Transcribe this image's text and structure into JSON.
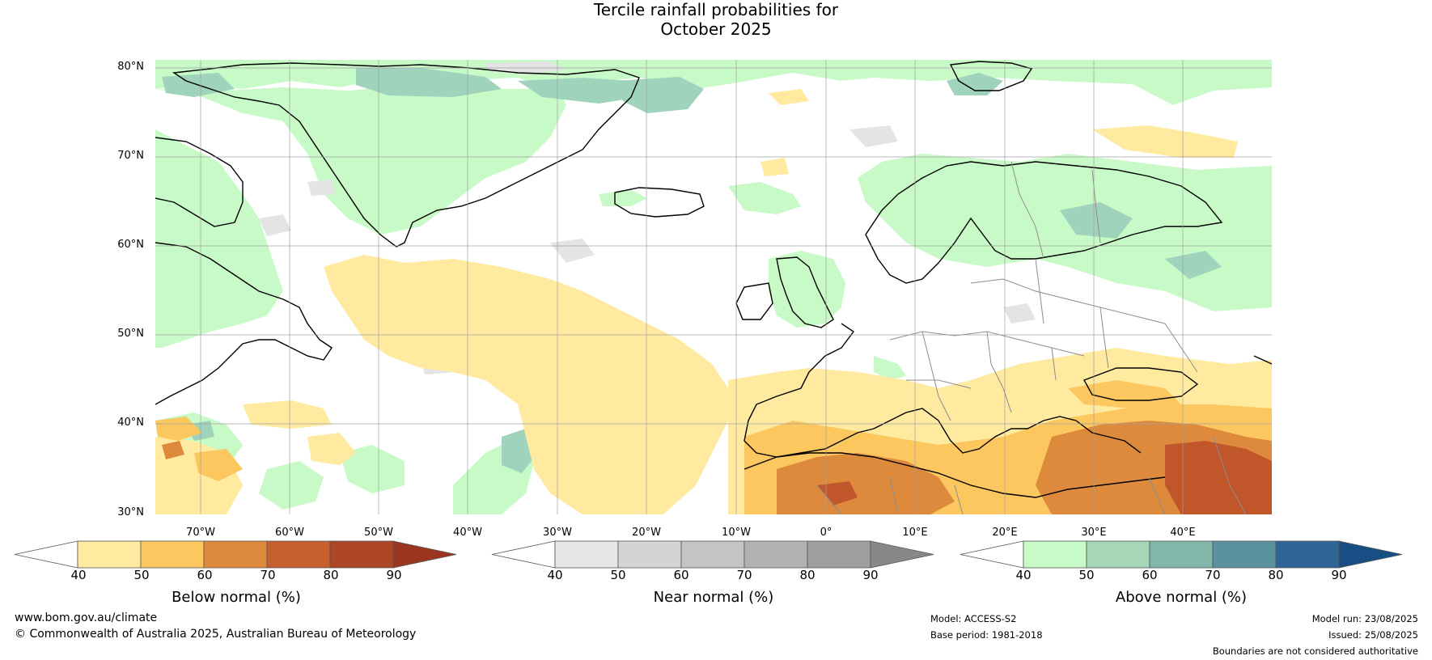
{
  "title_line1": "Tercile rainfall probabilities for",
  "title_line2": "October 2025",
  "map": {
    "lat_labels": [
      "80°N",
      "70°N",
      "60°N",
      "50°N",
      "40°N",
      "30°N"
    ],
    "lon_labels": [
      "70°W",
      "60°W",
      "50°W",
      "40°W",
      "30°W",
      "20°W",
      "10°W",
      "0°",
      "10°E",
      "20°E",
      "30°E",
      "40°E"
    ],
    "colors": {
      "above": "#c8fac8",
      "above_strong": "#9fd3bb",
      "near": "#e4e4e4",
      "below": "#ffeaa0",
      "below_mid": "#fcc75e",
      "below_strong": "#de8a3c",
      "below_max": "#c2562b",
      "coast": "#000000",
      "border": "#8c8c8c",
      "grid": "#a0a0a0"
    }
  },
  "colorbars": [
    {
      "name": "below",
      "label": "Below normal (%)",
      "ticks": [
        "40",
        "50",
        "60",
        "70",
        "80",
        "90"
      ],
      "colors": [
        "#ffffff",
        "#ffeaa0",
        "#fcc75e",
        "#de8a3c",
        "#c85f2f",
        "#ad4527",
        "#9b3520"
      ]
    },
    {
      "name": "near",
      "label": "Near normal (%)",
      "ticks": [
        "40",
        "50",
        "60",
        "70",
        "80",
        "90"
      ],
      "colors": [
        "#ffffff",
        "#e6e6e6",
        "#d4d4d4",
        "#c4c4c4",
        "#b2b2b2",
        "#9e9e9e",
        "#888888"
      ]
    },
    {
      "name": "above",
      "label": "Above normal (%)",
      "ticks": [
        "40",
        "50",
        "60",
        "70",
        "80",
        "90"
      ],
      "colors": [
        "#ffffff",
        "#c8fac8",
        "#a6d6b8",
        "#82b7ab",
        "#5c91a0",
        "#2f6697",
        "#174f85"
      ]
    }
  ],
  "footer": {
    "site": "www.bom.gov.au/climate",
    "copyright": "© Commonwealth of Australia 2025, Australian Bureau of Meteorology",
    "model": "Model: ACCESS-S2",
    "base_period": "Base period: 1981-2018",
    "model_run": "Model run: 23/08/2025",
    "issued": "Issued: 25/08/2025",
    "disclaimer": "Boundaries are not considered authoritative"
  }
}
